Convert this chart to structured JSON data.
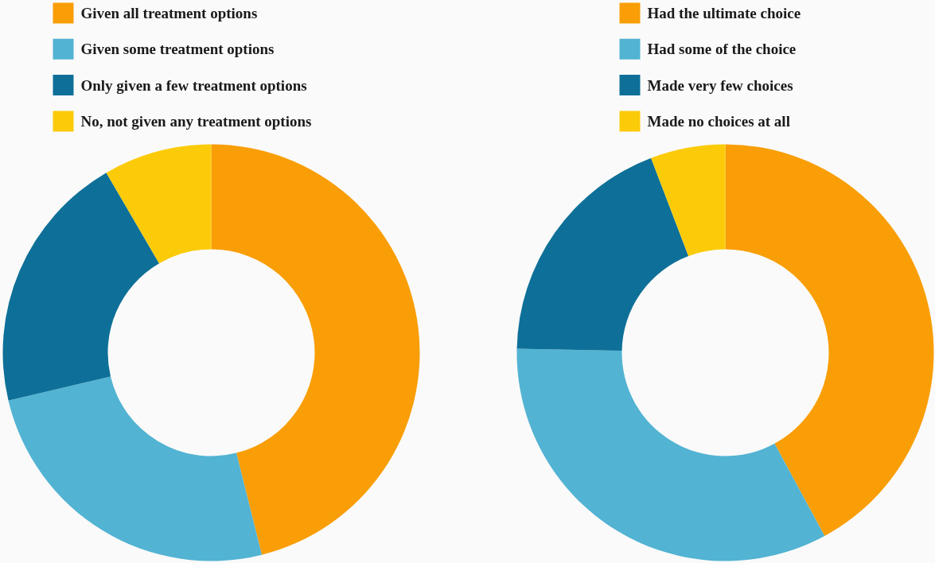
{
  "chart_data": [
    {
      "type": "donut",
      "categories": [
        "Given all treatment options",
        "Given some treatment options",
        "Only given a few treatment options",
        "No, not given any treatment options"
      ],
      "values": [
        46.1,
        25.2,
        20.3,
        8.4
      ],
      "colors": [
        "#f99e06",
        "#52b3d3",
        "#0e7098",
        "#fbcb0a"
      ],
      "legend": "top"
    },
    {
      "type": "donut",
      "categories": [
        "Had the ultimate choice",
        "Had some of the choice",
        "Made very few choices",
        "Made no choices at all"
      ],
      "values": [
        42.1,
        33.2,
        18.9,
        5.8
      ],
      "colors": [
        "#f99e06",
        "#52b3d3",
        "#0e7098",
        "#fbcb0a"
      ],
      "legend": "top"
    }
  ]
}
